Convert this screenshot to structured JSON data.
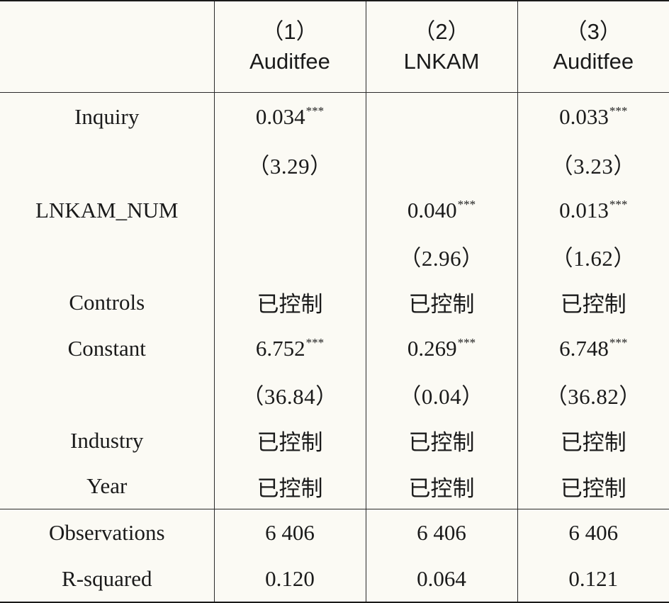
{
  "columns": [
    {
      "num": "（1）",
      "var": "Auditfee"
    },
    {
      "num": "（2）",
      "var": "LNKAM"
    },
    {
      "num": "（3）",
      "var": "Auditfee"
    }
  ],
  "rows": {
    "inquiry": {
      "label": "Inquiry",
      "coef": [
        {
          "value": "0.034",
          "stars": "***"
        },
        {
          "value": "",
          "stars": ""
        },
        {
          "value": "0.033",
          "stars": "***"
        }
      ],
      "tstat": [
        "（3.29）",
        "",
        "（3.23）"
      ]
    },
    "lnkam_num": {
      "label": "LNKAM_NUM",
      "coef": [
        {
          "value": "",
          "stars": ""
        },
        {
          "value": "0.040",
          "stars": "***"
        },
        {
          "value": "0.013",
          "stars": "***"
        }
      ],
      "tstat": [
        "",
        "（2.96）",
        "（1.62）"
      ]
    },
    "controls": {
      "label": "Controls",
      "values": [
        "已控制",
        "已控制",
        "已控制"
      ]
    },
    "constant": {
      "label": "Constant",
      "coef": [
        {
          "value": "6.752",
          "stars": "***"
        },
        {
          "value": "0.269",
          "stars": "***"
        },
        {
          "value": "6.748",
          "stars": "***"
        }
      ],
      "tstat": [
        "（36.84）",
        "（0.04）",
        "（36.82）"
      ]
    },
    "industry": {
      "label": "Industry",
      "values": [
        "已控制",
        "已控制",
        "已控制"
      ]
    },
    "year": {
      "label": "Year",
      "values": [
        "已控制",
        "已控制",
        "已控制"
      ]
    },
    "observations": {
      "label": "Observations",
      "values": [
        "6 406",
        "6 406",
        "6 406"
      ]
    },
    "r_squared": {
      "label": "R-squared",
      "values": [
        "0.120",
        "0.064",
        "0.121"
      ]
    }
  }
}
